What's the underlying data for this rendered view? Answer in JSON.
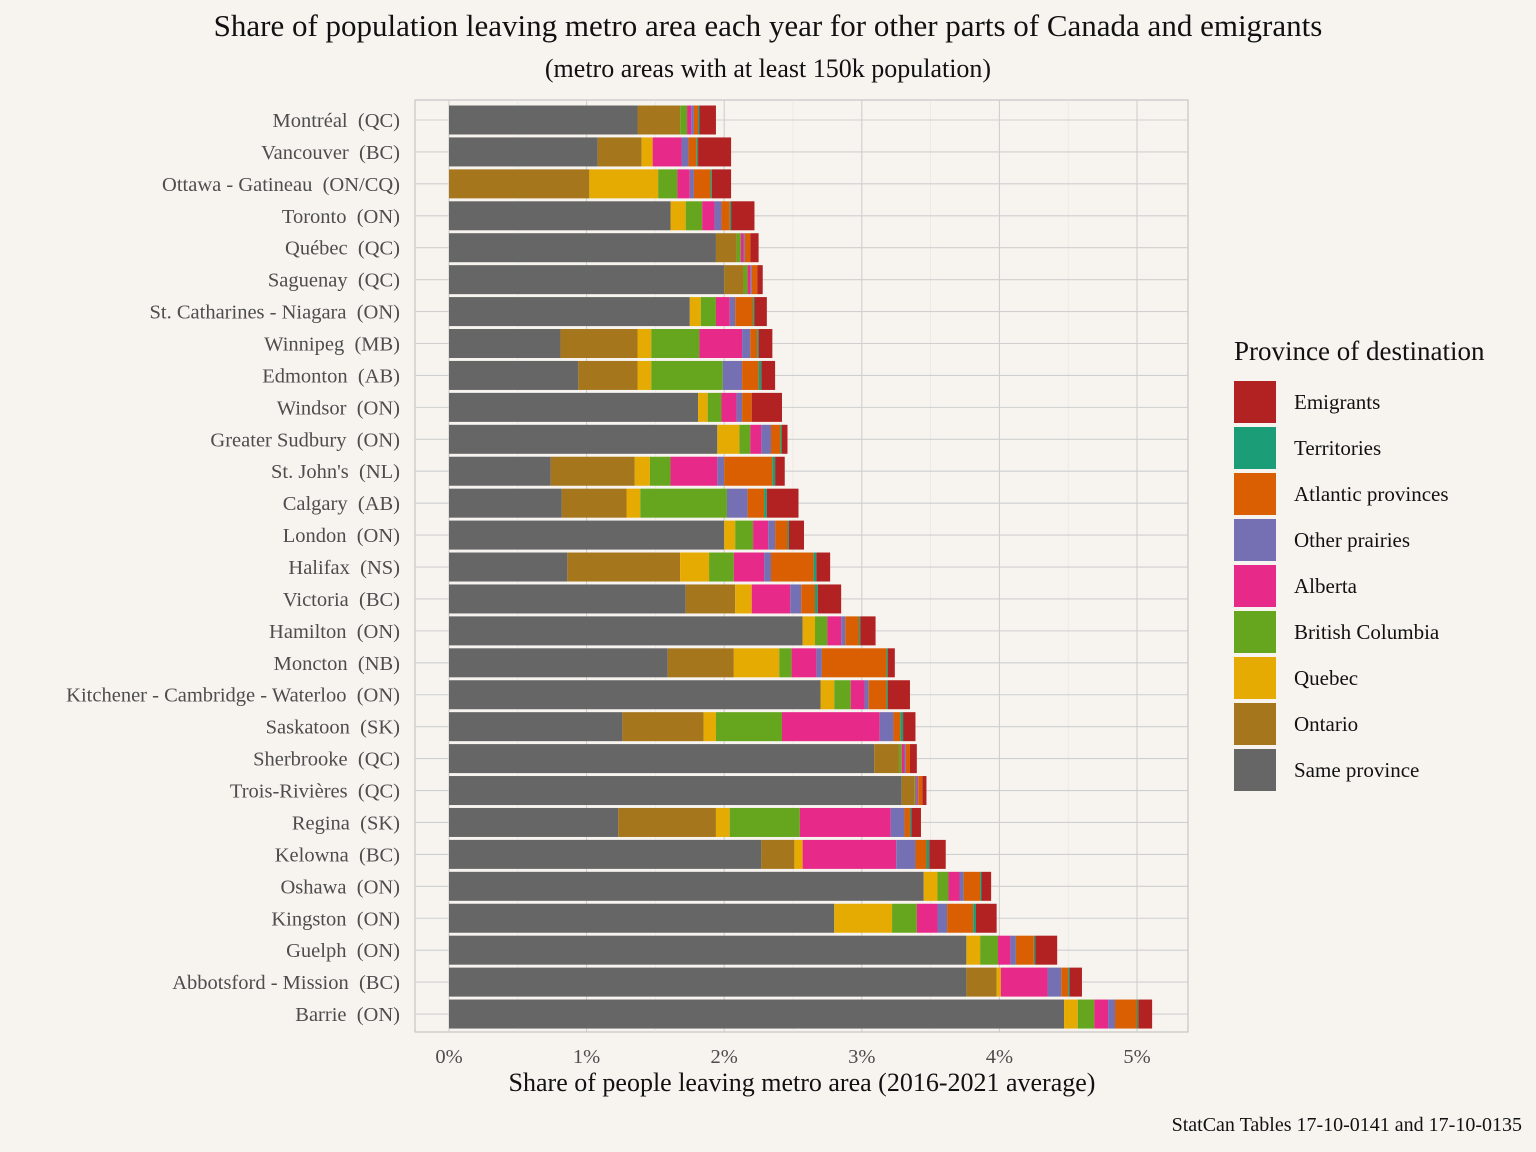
{
  "chart_data": {
    "type": "bar",
    "orientation": "horizontal",
    "stacked": true,
    "title": "Share of population leaving metro area each year for other parts of Canada and emigrants",
    "subtitle": "(metro areas with at least 150k population)",
    "xlabel": "Share of people leaving metro area (2016-2021 average)",
    "ylabel": "",
    "caption": "StatCan Tables 17-10-0141 and 17-10-0135",
    "xlim": [
      -0.25,
      5.37
    ],
    "x_ticks": [
      {
        "value": 0,
        "label": "0%"
      },
      {
        "value": 1,
        "label": "1%"
      },
      {
        "value": 2,
        "label": "2%"
      },
      {
        "value": 3,
        "label": "3%"
      },
      {
        "value": 4,
        "label": "4%"
      },
      {
        "value": 5,
        "label": "5%"
      }
    ],
    "grid": true,
    "legend_title": "Province of destination",
    "legend_position": "right",
    "legend": [
      {
        "name": "Emigrants",
        "color": "#b22222"
      },
      {
        "name": "Territories",
        "color": "#1b9e77"
      },
      {
        "name": "Atlantic provinces",
        "color": "#d95f02"
      },
      {
        "name": "Other prairies",
        "color": "#7570b3"
      },
      {
        "name": "Alberta",
        "color": "#e7298a"
      },
      {
        "name": "British Columbia",
        "color": "#66a61e"
      },
      {
        "name": "Quebec",
        "color": "#e6ab02"
      },
      {
        "name": "Ontario",
        "color": "#a6761d"
      },
      {
        "name": "Same province",
        "color": "#666666"
      }
    ],
    "stack_order": [
      "Same province",
      "Ontario",
      "Quebec",
      "British Columbia",
      "Alberta",
      "Other prairies",
      "Atlantic provinces",
      "Territories",
      "Emigrants"
    ],
    "categories": [
      "Montréal  (QC)",
      "Vancouver  (BC)",
      "Ottawa - Gatineau  (ON/CQ)",
      "Toronto  (ON)",
      "Québec  (QC)",
      "Saguenay  (QC)",
      "St. Catharines - Niagara  (ON)",
      "Winnipeg  (MB)",
      "Edmonton  (AB)",
      "Windsor  (ON)",
      "Greater Sudbury  (ON)",
      "St. John's  (NL)",
      "Calgary  (AB)",
      "London  (ON)",
      "Halifax  (NS)",
      "Victoria  (BC)",
      "Hamilton  (ON)",
      "Moncton  (NB)",
      "Kitchener - Cambridge - Waterloo  (ON)",
      "Saskatoon  (SK)",
      "Sherbrooke  (QC)",
      "Trois-Rivières  (QC)",
      "Regina  (SK)",
      "Kelowna  (BC)",
      "Oshawa  (ON)",
      "Kingston  (ON)",
      "Guelph  (ON)",
      "Abbotsford - Mission  (BC)",
      "Barrie  (ON)"
    ],
    "series": [
      {
        "name": "Same province",
        "values": [
          1.37,
          1.08,
          0.0,
          1.61,
          1.94,
          2.0,
          1.75,
          0.81,
          0.94,
          1.81,
          1.95,
          0.74,
          0.82,
          2.0,
          0.86,
          1.72,
          2.57,
          1.59,
          2.7,
          1.26,
          3.09,
          3.29,
          1.23,
          2.27,
          3.45,
          2.8,
          3.76,
          3.76,
          4.47
        ]
      },
      {
        "name": "Ontario",
        "values": [
          0.31,
          0.32,
          1.02,
          0.0,
          0.15,
          0.14,
          0.0,
          0.56,
          0.43,
          0.0,
          0.0,
          0.61,
          0.47,
          0.0,
          0.82,
          0.36,
          0.0,
          0.48,
          0.0,
          0.59,
          0.18,
          0.09,
          0.71,
          0.24,
          0.0,
          0.0,
          0.0,
          0.22,
          0.0
        ]
      },
      {
        "name": "Quebec",
        "values": [
          0.0,
          0.08,
          0.5,
          0.11,
          0.0,
          0.0,
          0.08,
          0.1,
          0.1,
          0.07,
          0.16,
          0.11,
          0.1,
          0.08,
          0.21,
          0.12,
          0.09,
          0.33,
          0.1,
          0.09,
          0.0,
          0.0,
          0.1,
          0.06,
          0.1,
          0.42,
          0.1,
          0.03,
          0.1
        ]
      },
      {
        "name": "British Columbia",
        "values": [
          0.05,
          0.0,
          0.14,
          0.12,
          0.03,
          0.03,
          0.11,
          0.35,
          0.52,
          0.1,
          0.08,
          0.15,
          0.63,
          0.13,
          0.18,
          0.0,
          0.09,
          0.09,
          0.12,
          0.48,
          0.02,
          0.01,
          0.51,
          0.0,
          0.08,
          0.18,
          0.13,
          0.0,
          0.12
        ]
      },
      {
        "name": "Alberta",
        "values": [
          0.03,
          0.21,
          0.09,
          0.09,
          0.02,
          0.02,
          0.1,
          0.31,
          0.0,
          0.11,
          0.08,
          0.34,
          0.0,
          0.11,
          0.22,
          0.28,
          0.1,
          0.18,
          0.1,
          0.71,
          0.02,
          0.01,
          0.66,
          0.68,
          0.08,
          0.15,
          0.09,
          0.34,
          0.1
        ]
      },
      {
        "name": "Other prairies",
        "values": [
          0.02,
          0.05,
          0.03,
          0.05,
          0.01,
          0.01,
          0.04,
          0.06,
          0.14,
          0.04,
          0.07,
          0.05,
          0.15,
          0.05,
          0.05,
          0.08,
          0.03,
          0.04,
          0.03,
          0.1,
          0.01,
          0.01,
          0.1,
          0.14,
          0.03,
          0.07,
          0.04,
          0.1,
          0.05
        ]
      },
      {
        "name": "Atlantic provinces",
        "values": [
          0.03,
          0.06,
          0.12,
          0.06,
          0.04,
          0.04,
          0.13,
          0.05,
          0.12,
          0.07,
          0.07,
          0.35,
          0.12,
          0.09,
          0.31,
          0.1,
          0.1,
          0.47,
          0.13,
          0.05,
          0.03,
          0.03,
          0.04,
          0.08,
          0.12,
          0.19,
          0.13,
          0.05,
          0.16
        ]
      },
      {
        "name": "Territories",
        "values": [
          0.01,
          0.01,
          0.01,
          0.01,
          0.0,
          0.0,
          0.01,
          0.01,
          0.02,
          0.0,
          0.01,
          0.02,
          0.02,
          0.01,
          0.02,
          0.02,
          0.01,
          0.01,
          0.01,
          0.02,
          0.0,
          0.0,
          0.01,
          0.02,
          0.01,
          0.02,
          0.01,
          0.01,
          0.01
        ]
      },
      {
        "name": "Emigrants",
        "values": [
          0.12,
          0.24,
          0.14,
          0.17,
          0.06,
          0.04,
          0.09,
          0.1,
          0.1,
          0.22,
          0.04,
          0.07,
          0.23,
          0.11,
          0.1,
          0.17,
          0.11,
          0.05,
          0.16,
          0.09,
          0.05,
          0.03,
          0.07,
          0.12,
          0.07,
          0.15,
          0.16,
          0.09,
          0.1
        ]
      }
    ]
  }
}
